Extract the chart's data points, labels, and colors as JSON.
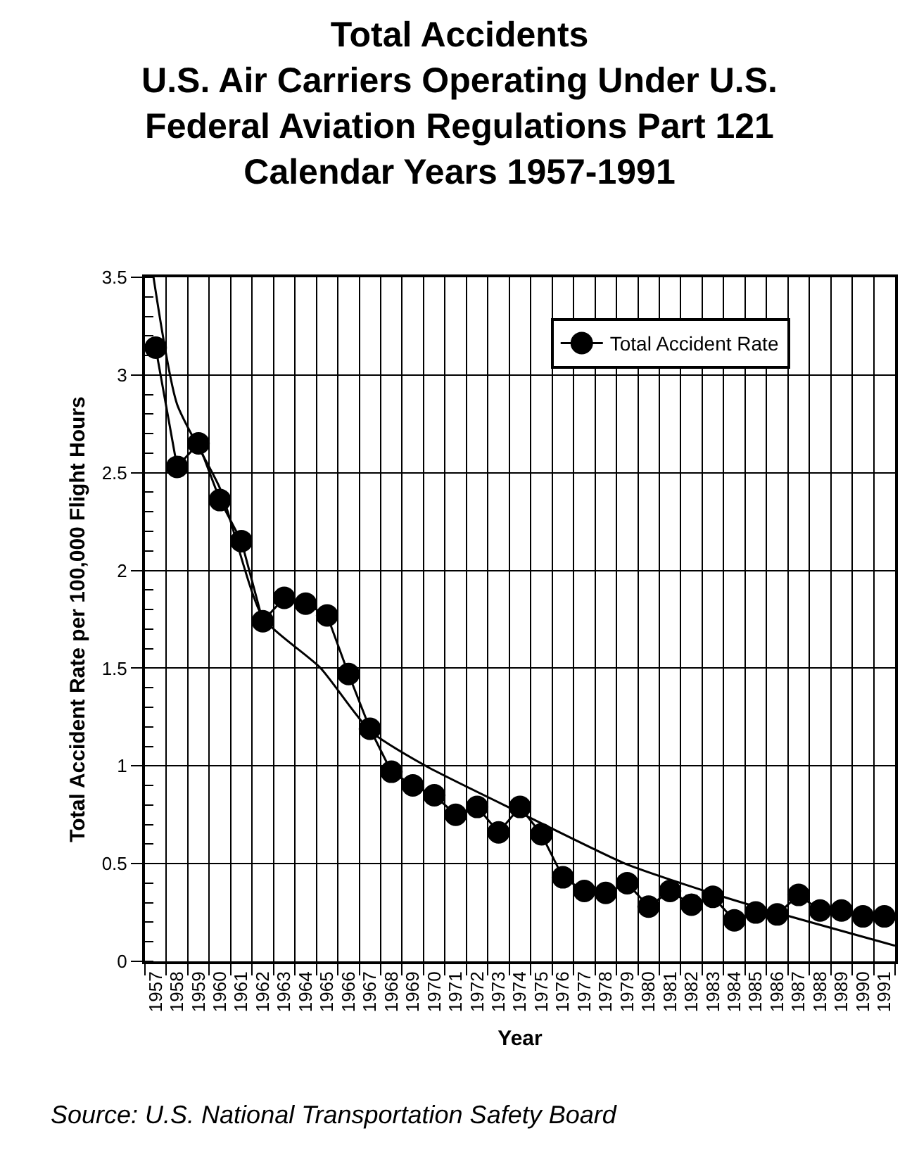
{
  "chart_data": {
    "type": "line",
    "title": "Total Accidents\nU.S. Air Carriers Operating Under U.S.\nFederal Aviation Regulations Part 121\nCalendar Years 1957-1991",
    "xlabel": "Year",
    "ylabel": "Total Accident Rate per 100,000 Flight Hours",
    "x": [
      1957,
      1958,
      1959,
      1960,
      1961,
      1962,
      1963,
      1964,
      1965,
      1966,
      1967,
      1968,
      1969,
      1970,
      1971,
      1972,
      1973,
      1974,
      1975,
      1976,
      1977,
      1978,
      1979,
      1980,
      1981,
      1982,
      1983,
      1984,
      1985,
      1986,
      1987,
      1988,
      1989,
      1990,
      1991
    ],
    "series": [
      {
        "name": "Total Accident Rate",
        "color": "#000000",
        "marker": "circle",
        "values": [
          3.14,
          2.53,
          2.65,
          2.36,
          2.15,
          1.74,
          1.86,
          1.83,
          1.77,
          1.47,
          1.19,
          0.97,
          0.9,
          0.85,
          0.75,
          0.79,
          0.66,
          0.79,
          0.65,
          0.43,
          0.36,
          0.35,
          0.4,
          0.28,
          0.36,
          0.29,
          0.33,
          0.21,
          0.25,
          0.24,
          0.34,
          0.26,
          0.26,
          0.23,
          0.23
        ]
      },
      {
        "type": "line",
        "color": "#000000",
        "marker": "none",
        "x": [
          1956.9,
          1958,
          1960,
          1962,
          1964.7,
          1967,
          1969.6,
          1974,
          1978.9,
          1981.5,
          1985,
          1991.5
        ],
        "values": [
          3.5,
          2.85,
          2.42,
          1.76,
          1.5,
          1.18,
          1.0,
          0.76,
          0.5,
          0.4,
          0.28,
          0.08
        ]
      }
    ],
    "xlim": [
      1956.5,
      1991.5
    ],
    "xticks": [
      1957,
      1958,
      1959,
      1960,
      1961,
      1962,
      1963,
      1964,
      1965,
      1966,
      1967,
      1968,
      1969,
      1970,
      1971,
      1972,
      1973,
      1974,
      1975,
      1976,
      1977,
      1978,
      1979,
      1980,
      1981,
      1982,
      1983,
      1984,
      1985,
      1986,
      1987,
      1988,
      1989,
      1990,
      1991
    ],
    "ylim": [
      0,
      3.5
    ],
    "yticks": [
      0,
      0.5,
      1,
      1.5,
      2,
      2.5,
      3,
      3.5
    ],
    "grid": true,
    "legend": "top right",
    "line_style": "solid",
    "annotations": [
      "Source: U.S. National Transportation Safety Board"
    ]
  }
}
